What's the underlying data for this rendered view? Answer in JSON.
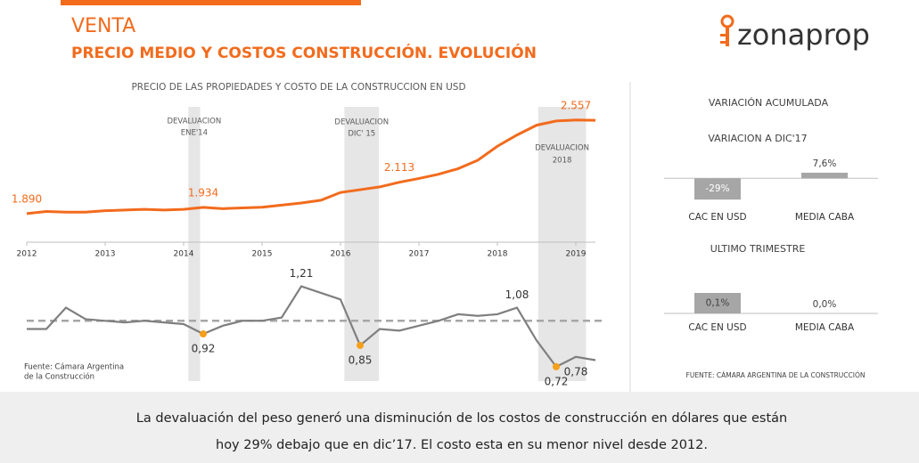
{
  "header": {
    "title": "VENTA",
    "subtitle": "PRECIO MEDIO Y COSTOS CONSTRUCCIÓN. EVOLUCIÓN",
    "logo": "zonaprop"
  },
  "chart_title": "PRECIO DE LAS PROPIEDADES Y COSTO DE LA CONSTRUCCION EN USD",
  "source": [
    "Fuente: Cámara Argentina",
    "de la Construcción"
  ],
  "panel": {
    "title": "VARIACIÓN ACUMULADA",
    "source": "FUENTE: CÁMARA ARGENTINA DE LA CONSTRUCCIÓN"
  },
  "footer": {
    "lines": [
      "La devaluación del peso generó una disminución de los costos de construcción en dólares que están",
      "hoy 29% debajo que en dic’17. El costo esta en su menor nivel desde 2012."
    ]
  },
  "chart_data": [
    {
      "type": "line",
      "color": "#f26b1d",
      "x": [
        2012,
        2012.25,
        2012.5,
        2012.75,
        2013,
        2013.25,
        2013.5,
        2013.75,
        2014,
        2014.25,
        2014.5,
        2014.75,
        2015,
        2015.25,
        2015.5,
        2015.75,
        2016,
        2016.25,
        2016.5,
        2016.75,
        2017,
        2017.25,
        2017.5,
        2017.75,
        2018,
        2018.25,
        2018.5,
        2018.75,
        2019,
        2019.25
      ],
      "values": [
        1890,
        1905,
        1900,
        1900,
        1910,
        1915,
        1920,
        1915,
        1920,
        1934,
        1925,
        1930,
        1935,
        1950,
        1965,
        1985,
        2040,
        2060,
        2080,
        2113,
        2140,
        2170,
        2210,
        2270,
        2370,
        2450,
        2520,
        2550,
        2557,
        2555
      ],
      "value_labels": [
        "1.890",
        null,
        null,
        null,
        null,
        null,
        null,
        null,
        null,
        "1.934",
        null,
        null,
        null,
        null,
        null,
        null,
        null,
        null,
        null,
        "2.113",
        null,
        null,
        null,
        null,
        null,
        null,
        null,
        null,
        "2.557",
        null
      ],
      "xlim": [
        2012,
        2019.25
      ],
      "xticks": [
        2012,
        2013,
        2014,
        2015,
        2016,
        2017,
        2018,
        2019
      ],
      "ylim": [
        1800,
        2600
      ],
      "bands": [
        {
          "from": 2014.06,
          "to": 2014.21,
          "label": [
            "DEVALUACION",
            "ENE'14"
          ]
        },
        {
          "from": 2016.05,
          "to": 2016.49,
          "label": [
            "DEVALUACION",
            "DIC' 15"
          ]
        },
        {
          "from": 2018.52,
          "to": 2019.13,
          "label": [
            "DEVALUACION",
            "2018"
          ]
        }
      ]
    },
    {
      "type": "line",
      "color": "#7f7f7f",
      "marker_color": "#f5a01a",
      "reference": 1,
      "x": [
        2012,
        2012.25,
        2012.5,
        2012.75,
        2013,
        2013.25,
        2013.5,
        2013.75,
        2014,
        2014.25,
        2014.5,
        2014.75,
        2015,
        2015.25,
        2015.5,
        2015.75,
        2016,
        2016.25,
        2016.5,
        2016.75,
        2017,
        2017.25,
        2017.5,
        2017.75,
        2018,
        2018.25,
        2018.5,
        2018.75,
        2019,
        2019.25
      ],
      "values": [
        0.95,
        0.95,
        1.08,
        1.01,
        1.0,
        0.99,
        1.0,
        0.99,
        0.98,
        0.92,
        0.97,
        1.0,
        1.0,
        1.02,
        1.21,
        1.17,
        1.13,
        0.85,
        0.95,
        0.94,
        0.97,
        1.0,
        1.04,
        1.03,
        1.04,
        1.08,
        0.88,
        0.72,
        0.78,
        0.76
      ],
      "value_labels": [
        null,
        null,
        null,
        null,
        null,
        null,
        null,
        null,
        null,
        "0,92",
        null,
        null,
        null,
        null,
        "1,21",
        null,
        null,
        "0,85",
        null,
        null,
        null,
        null,
        null,
        null,
        null,
        "1,08",
        null,
        "0,72",
        "0,78",
        null
      ],
      "ylim": [
        0.6,
        1.3
      ]
    },
    {
      "type": "bar",
      "title": "VARIACION A DIC'17",
      "color": "#a6a6a6",
      "categories": [
        "CAC EN USD",
        "MEDIA CABA"
      ],
      "values": [
        -29,
        7.6
      ],
      "value_labels": [
        "-29%",
        "7,6%"
      ],
      "ylim": [
        -30,
        10
      ]
    },
    {
      "type": "bar",
      "title": "ULTIMO TRIMESTRE",
      "color": "#a6a6a6",
      "categories": [
        "CAC EN USD",
        "MEDIA CABA"
      ],
      "values": [
        0.1,
        0
      ],
      "value_labels": [
        "0,1%",
        "0,0%"
      ],
      "ylim": [
        0,
        0.1
      ]
    }
  ]
}
